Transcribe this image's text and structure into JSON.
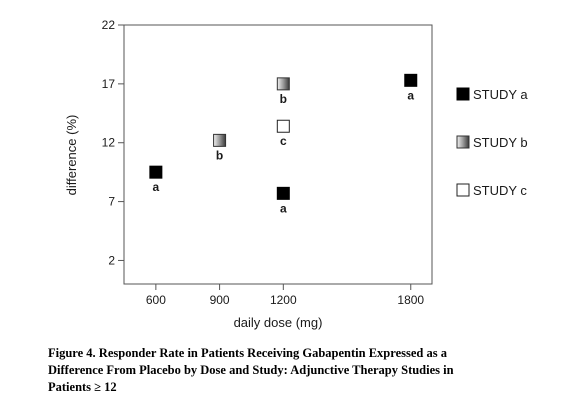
{
  "chart_data": {
    "type": "scatter",
    "xlabel": "daily dose (mg)",
    "ylabel": "difference (%)",
    "x_ticks": [
      600,
      900,
      1200,
      1800
    ],
    "y_ticks": [
      2,
      7,
      12,
      17,
      22
    ],
    "xlim": [
      450,
      1900
    ],
    "ylim": [
      0,
      22
    ],
    "grid": false,
    "legend_position": "right",
    "series": [
      {
        "name": "STUDY a",
        "style": "solid",
        "color": "#000000",
        "points": [
          {
            "x": 600,
            "y": 9.5,
            "label": "a"
          },
          {
            "x": 1200,
            "y": 7.7,
            "label": "a"
          },
          {
            "x": 1800,
            "y": 17.3,
            "label": "a"
          }
        ]
      },
      {
        "name": "STUDY b",
        "style": "gradient",
        "color": "#888888",
        "points": [
          {
            "x": 900,
            "y": 12.2,
            "label": "b"
          },
          {
            "x": 1200,
            "y": 17.0,
            "label": "b"
          }
        ]
      },
      {
        "name": "STUDY c",
        "style": "open",
        "color": "#ffffff",
        "points": [
          {
            "x": 1200,
            "y": 13.4,
            "label": "c"
          }
        ]
      }
    ]
  },
  "caption": {
    "line1": "Figure 4. Responder Rate in Patients Receiving Gabapentin Expressed as a",
    "line2": "Difference From Placebo by Dose and Study: Adjunctive Therapy Studies in",
    "line3": "Patients ≥ 12"
  }
}
